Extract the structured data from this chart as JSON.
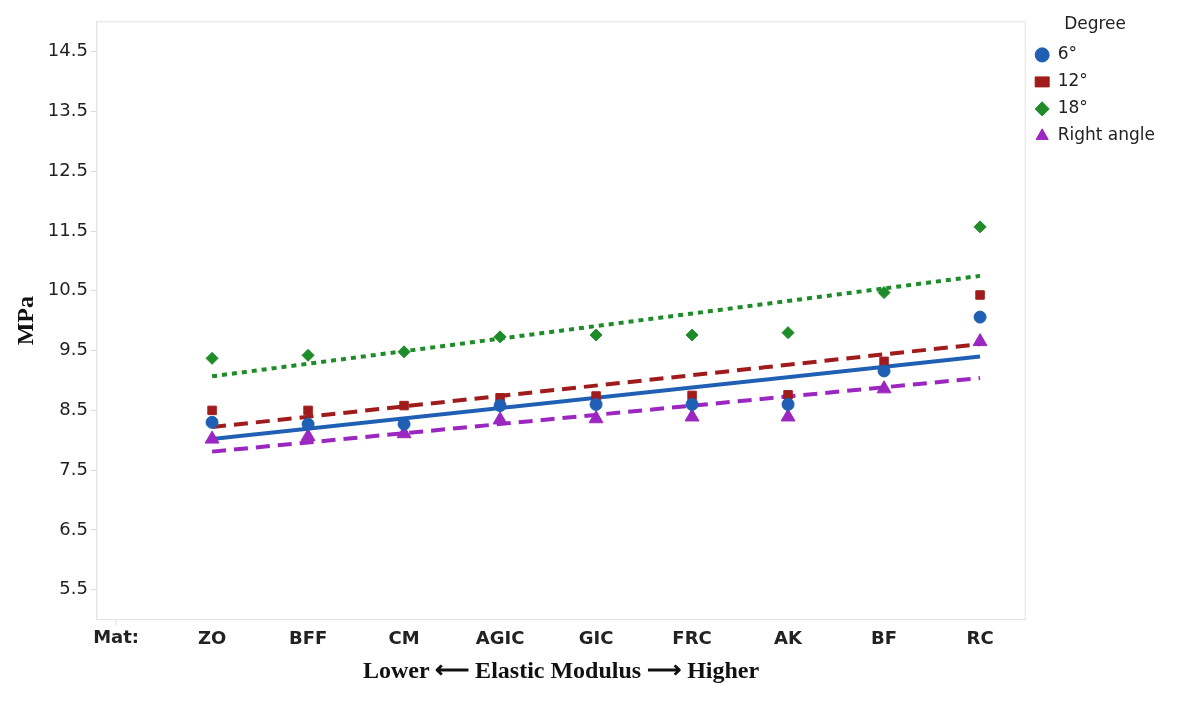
{
  "chart_data": {
    "type": "scatter",
    "xlabel": "Lower ⟵ Elastic Modulus ⟶ Higher",
    "ylabel": "MPa",
    "legend_title": "Degree",
    "legend": "right",
    "grid": false,
    "categories": [
      "ZO",
      "BFF",
      "CM",
      "AGIC",
      "GIC",
      "FRC",
      "AK",
      "BF",
      "RC"
    ],
    "annotations": [
      "Mat:"
    ],
    "ylim": [
      5.0,
      15.0
    ],
    "yticks": [
      5.5,
      6.5,
      7.5,
      8.5,
      9.5,
      10.5,
      11.5,
      12.5,
      13.5,
      14.5
    ],
    "series": [
      {
        "type": "scatter",
        "name": "6°",
        "color": "#1f5fb4",
        "marker": "circle",
        "values": [
          8.3,
          8.27,
          8.27,
          8.58,
          8.6,
          8.6,
          8.6,
          9.16,
          10.06
        ]
      },
      {
        "type": "scatter",
        "name": "12°",
        "color": "#a01c1c",
        "marker": "square",
        "values": [
          8.5,
          8.5,
          8.58,
          8.71,
          8.74,
          8.75,
          8.76,
          9.32,
          10.43
        ]
      },
      {
        "type": "scatter",
        "name": "18°",
        "color": "#1e8c28",
        "marker": "diamond",
        "values": [
          9.37,
          9.42,
          9.48,
          9.73,
          9.76,
          9.76,
          9.8,
          10.47,
          11.57
        ]
      },
      {
        "type": "scatter",
        "name": "Right angle",
        "color": "#9b27c0",
        "marker": "triangle",
        "values": [
          8.02,
          8.06,
          8.11,
          8.34,
          8.36,
          8.39,
          8.39,
          8.86,
          9.65
        ]
      },
      {
        "type": "line",
        "color": "#1f5fb4",
        "line_style": "solid",
        "x": [
          "ZO",
          "RC"
        ],
        "values": [
          8.02,
          9.4
        ]
      },
      {
        "type": "line",
        "color": "#a01c1c",
        "line_style": "dashed",
        "x": [
          "ZO",
          "RC"
        ],
        "values": [
          8.22,
          9.61
        ]
      },
      {
        "type": "line",
        "color": "#1e8c28",
        "line_style": "dotted",
        "x": [
          "ZO",
          "RC"
        ],
        "values": [
          9.07,
          10.75
        ]
      },
      {
        "type": "line",
        "color": "#9b27c0",
        "line_style": "dashed",
        "x": [
          "ZO",
          "RC"
        ],
        "values": [
          7.81,
          9.04
        ]
      }
    ]
  }
}
